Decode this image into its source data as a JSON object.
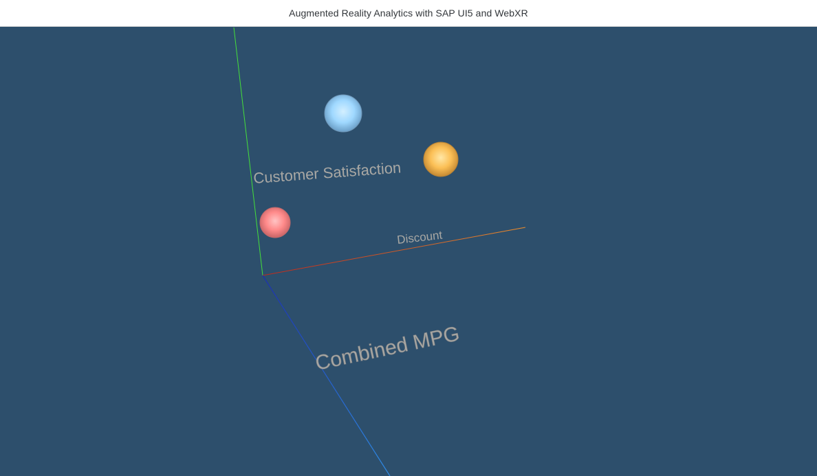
{
  "header": {
    "title": "Augmented Reality Analytics with SAP UI5 and WebXR"
  },
  "scene": {
    "background_color": "#2d4f6c",
    "axes": {
      "y_label": "Customer Satisfaction",
      "x_label": "Discount",
      "z_label": "Combined MPG",
      "y_color": "#45e03a",
      "x_color_start": "#c0281c",
      "x_color_end": "#e58a2e",
      "z_color_start": "#1b2fb0",
      "z_color_end": "#2f8de8"
    },
    "points": [
      {
        "name": "blue-sphere",
        "color": "#8fd1ff"
      },
      {
        "name": "orange-sphere",
        "color": "#f8b84a"
      },
      {
        "name": "red-sphere",
        "color": "#ff8585"
      }
    ]
  }
}
